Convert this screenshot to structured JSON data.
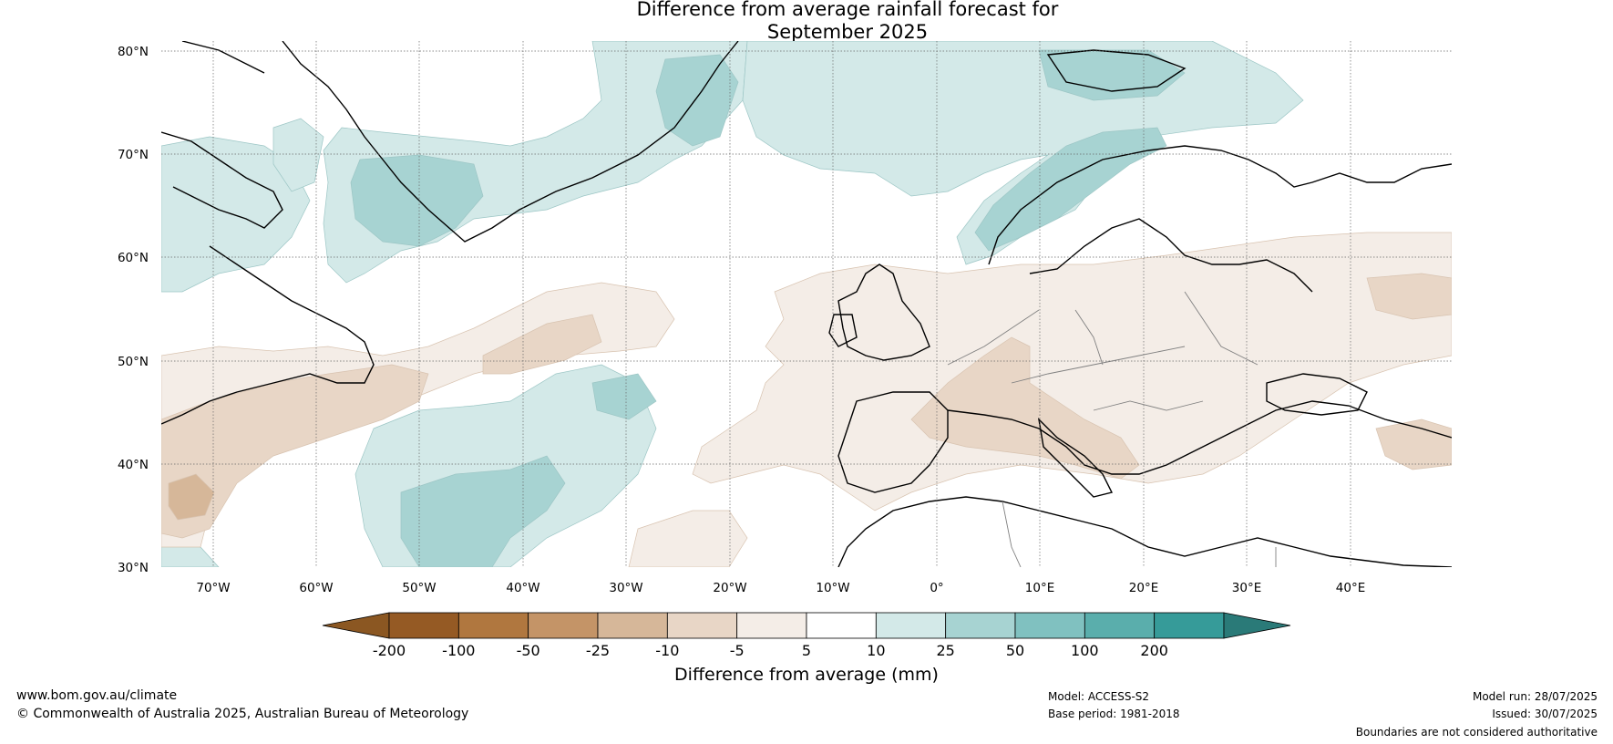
{
  "title": {
    "line1": "Difference from average rainfall forecast for",
    "line2": "September 2025"
  },
  "lat_labels": [
    "80°N",
    "70°N",
    "60°N",
    "50°N",
    "40°N",
    "30°N"
  ],
  "lon_labels": [
    "70°W",
    "60°W",
    "50°W",
    "40°W",
    "30°W",
    "20°W",
    "10°W",
    "0°",
    "10°E",
    "20°E",
    "30°E",
    "40°E"
  ],
  "colorbar": {
    "title": "Difference from average (mm)",
    "bins": [
      {
        "label": "-200",
        "color": "#955a24"
      },
      {
        "label": "-100",
        "color": "#b0773f"
      },
      {
        "label": "-50",
        "color": "#c49467"
      },
      {
        "label": "-25",
        "color": "#d6b799"
      },
      {
        "label": "-10",
        "color": "#e8d6c6"
      },
      {
        "label": "-5",
        "color": "#f4ede7"
      },
      {
        "label": "5",
        "color": "#ffffff"
      },
      {
        "label": "10",
        "color": "#d3e9e8"
      },
      {
        "label": "25",
        "color": "#a7d3d2"
      },
      {
        "label": "50",
        "color": "#80c1c0"
      },
      {
        "label": "100",
        "color": "#5aaeac"
      },
      {
        "label": "200",
        "color": "#369b99"
      },
      {
        "label": "",
        "color": "#2a7a78"
      }
    ]
  },
  "footer": {
    "website": "www.bom.gov.au/climate",
    "copyright": "© Commonwealth of Australia 2025, Australian Bureau of Meteorology",
    "model": "Model: ACCESS-S2",
    "base_period": "Base period: 1981-2018",
    "model_run": "Model run: 28/07/2025",
    "issued": "Issued: 30/07/2025",
    "disclaimer": "Boundaries are not considered authoritative"
  }
}
